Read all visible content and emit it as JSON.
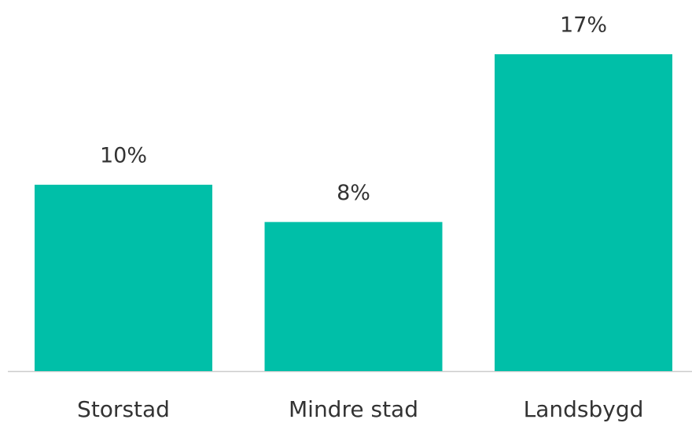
{
  "chart_data": {
    "type": "bar",
    "categories": [
      "Storstad",
      "Mindre stad",
      "Landsbygd"
    ],
    "values": [
      10,
      8,
      17
    ],
    "value_labels": [
      "10%",
      "8%",
      "17%"
    ],
    "color": "#00bfa8"
  }
}
